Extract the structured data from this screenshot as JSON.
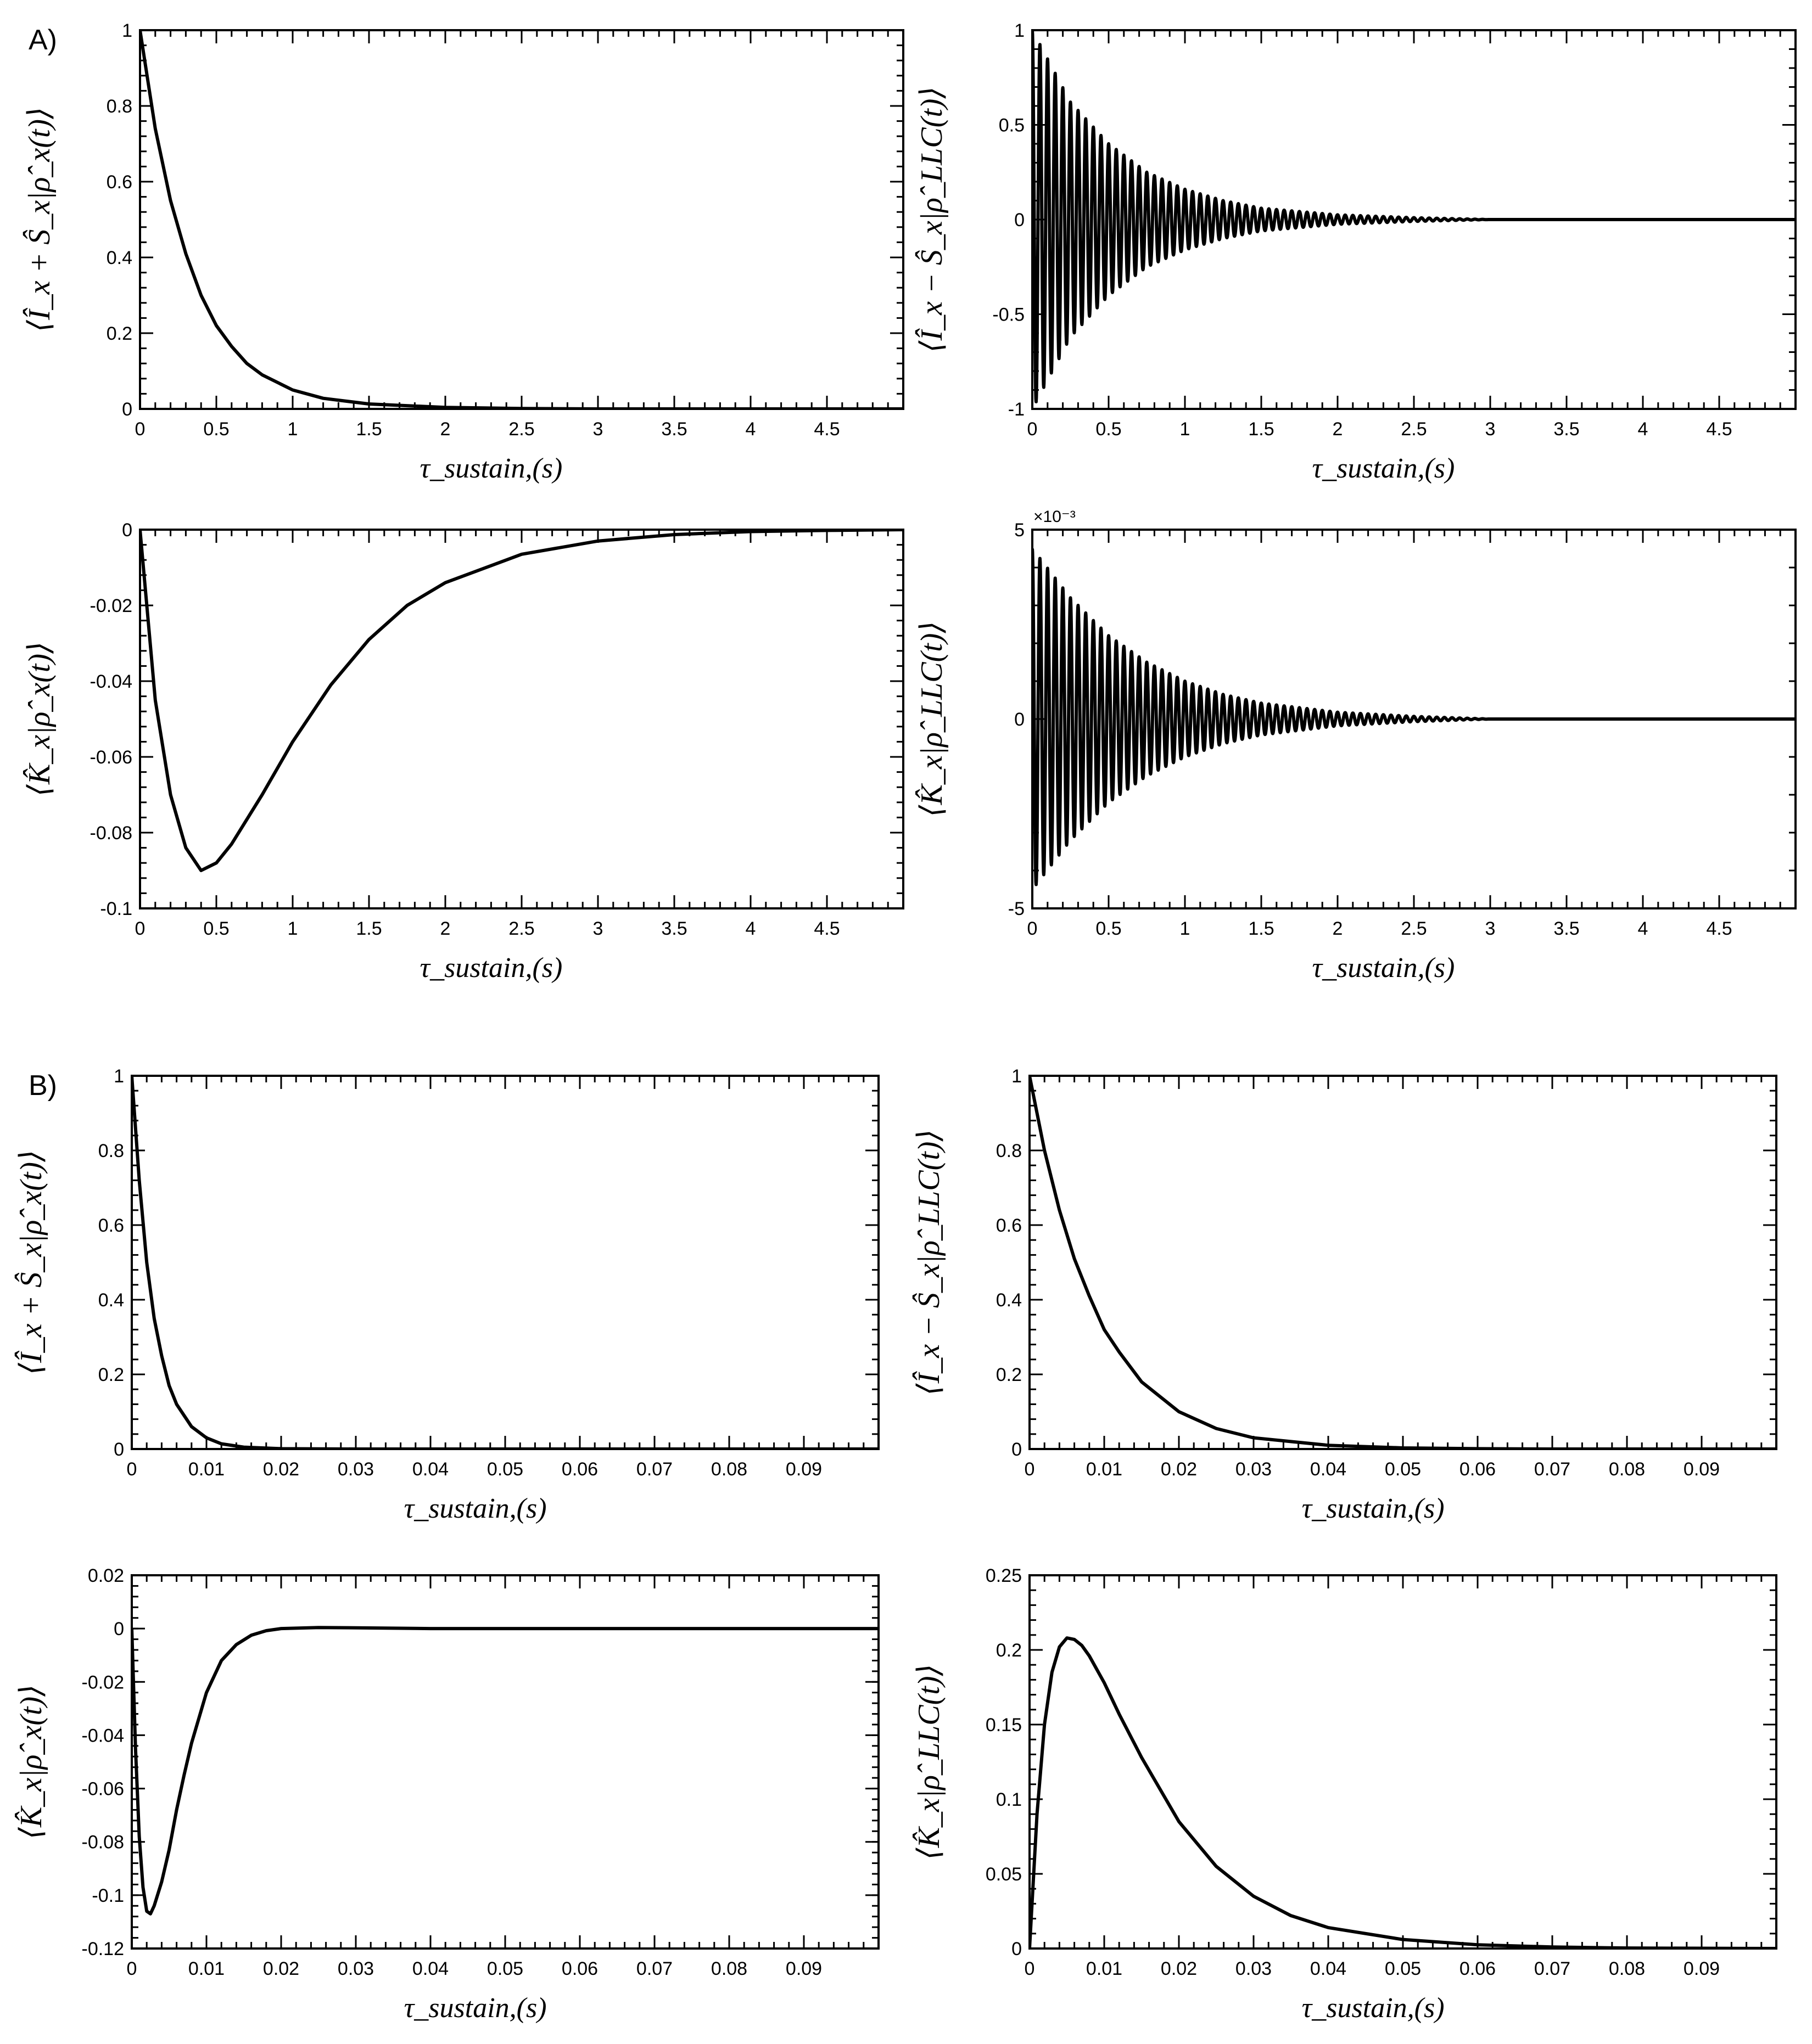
{
  "figure": {
    "panel_labels": [
      "A)",
      "B)"
    ]
  },
  "chart_data": [
    {
      "id": "A1",
      "type": "line",
      "panel": "A",
      "ylabel": "⟨Î_x + Ŝ_x|ρ̂_x(t)⟩",
      "xlabel": "τ_sustain,(s)",
      "xlim": [
        0,
        5
      ],
      "ylim": [
        0,
        1
      ],
      "xticks": [
        0,
        0.5,
        1,
        1.5,
        2,
        2.5,
        3,
        3.5,
        4,
        4.5
      ],
      "xtick_labels": [
        "0",
        "0.5",
        "1",
        "1.5",
        "2",
        "2.5",
        "3",
        "3.5",
        "4",
        "4.5"
      ],
      "yticks": [
        0,
        0.2,
        0.4,
        0.6,
        0.8,
        1
      ],
      "ytick_labels": [
        "0",
        "0.2",
        "0.4",
        "0.6",
        "0.8",
        "1"
      ],
      "series": [
        {
          "kind": "curve",
          "x": [
            0,
            0.1,
            0.2,
            0.3,
            0.4,
            0.5,
            0.6,
            0.7,
            0.8,
            1.0,
            1.2,
            1.5,
            2.0,
            2.5,
            3.0,
            4.0,
            5.0
          ],
          "y": [
            1.0,
            0.74,
            0.55,
            0.41,
            0.3,
            0.22,
            0.165,
            0.12,
            0.09,
            0.05,
            0.028,
            0.013,
            0.004,
            0.001,
            0.0,
            0.0,
            0.0
          ]
        }
      ]
    },
    {
      "id": "A2",
      "type": "line",
      "panel": "A",
      "ylabel": "⟨Î_x − Ŝ_x|ρ̂_LLC(t)⟩",
      "xlabel": "τ_sustain,(s)",
      "xlim": [
        0,
        5
      ],
      "ylim": [
        -1,
        1
      ],
      "xticks": [
        0,
        0.5,
        1,
        1.5,
        2,
        2.5,
        3,
        3.5,
        4,
        4.5
      ],
      "xtick_labels": [
        "0",
        "0.5",
        "1",
        "1.5",
        "2",
        "2.5",
        "3",
        "3.5",
        "4",
        "4.5"
      ],
      "yticks": [
        -1,
        -0.5,
        0,
        0.5,
        1
      ],
      "ytick_labels": [
        "-1",
        "-0.5",
        "0",
        "0.5",
        "1"
      ],
      "series": [
        {
          "kind": "damped_oscillation",
          "amplitude_x": [
            0,
            0.25,
            0.5,
            0.75,
            1.0,
            1.25,
            1.5,
            2.0,
            2.5,
            3.0,
            5.0
          ],
          "amplitude_y": [
            1.0,
            0.62,
            0.4,
            0.25,
            0.16,
            0.1,
            0.06,
            0.025,
            0.01,
            0.0,
            0.0
          ],
          "period": 0.05
        }
      ]
    },
    {
      "id": "A3",
      "type": "line",
      "panel": "A",
      "ylabel": "⟨K̂_x|ρ̂_x(t)⟩",
      "xlabel": "τ_sustain,(s)",
      "xlim": [
        0,
        5
      ],
      "ylim": [
        -0.1,
        0
      ],
      "xticks": [
        0,
        0.5,
        1,
        1.5,
        2,
        2.5,
        3,
        3.5,
        4,
        4.5
      ],
      "xtick_labels": [
        "0",
        "0.5",
        "1",
        "1.5",
        "2",
        "2.5",
        "3",
        "3.5",
        "4",
        "4.5"
      ],
      "yticks": [
        -0.1,
        -0.08,
        -0.06,
        -0.04,
        -0.02,
        0
      ],
      "ytick_labels": [
        "-0.1",
        "-0.08",
        "-0.06",
        "-0.04",
        "-0.02",
        "0"
      ],
      "series": [
        {
          "kind": "curve",
          "x": [
            0,
            0.1,
            0.2,
            0.3,
            0.4,
            0.5,
            0.6,
            0.8,
            1.0,
            1.25,
            1.5,
            1.75,
            2.0,
            2.5,
            3.0,
            3.5,
            4.0,
            4.5,
            5.0
          ],
          "y": [
            0,
            -0.045,
            -0.07,
            -0.084,
            -0.09,
            -0.088,
            -0.083,
            -0.07,
            -0.056,
            -0.041,
            -0.029,
            -0.02,
            -0.014,
            -0.0065,
            -0.003,
            -0.0013,
            -0.0005,
            -0.0002,
            0
          ]
        }
      ]
    },
    {
      "id": "A4",
      "type": "line",
      "panel": "A",
      "ylabel": "⟨K̂_x|ρ̂_LLC(t)⟩",
      "xlabel": "τ_sustain,(s)",
      "xlim": [
        0,
        5
      ],
      "ylim": [
        -5,
        5
      ],
      "multiplier": "×10⁻³",
      "xticks": [
        0,
        0.5,
        1,
        1.5,
        2,
        2.5,
        3,
        3.5,
        4,
        4.5
      ],
      "xtick_labels": [
        "0",
        "0.5",
        "1",
        "1.5",
        "2",
        "2.5",
        "3",
        "3.5",
        "4",
        "4.5"
      ],
      "yticks": [
        -5,
        0,
        5
      ],
      "ytick_labels": [
        "-5",
        "0",
        "5"
      ],
      "series": [
        {
          "kind": "damped_oscillation",
          "amplitude_x": [
            0,
            0.25,
            0.5,
            0.75,
            1.0,
            1.25,
            1.5,
            2.0,
            2.5,
            3.0,
            5.0
          ],
          "amplitude_y": [
            4.5,
            3.2,
            2.2,
            1.5,
            1.0,
            0.65,
            0.42,
            0.18,
            0.07,
            0.0,
            0.0
          ],
          "period": 0.05
        }
      ]
    },
    {
      "id": "B1",
      "type": "line",
      "panel": "B",
      "ylabel": "⟨Î_x + Ŝ_x|ρ̂_x(t)⟩",
      "xlabel": "τ_sustain,(s)",
      "xlim": [
        0,
        0.1
      ],
      "ylim": [
        0,
        1
      ],
      "xticks": [
        0,
        0.01,
        0.02,
        0.03,
        0.04,
        0.05,
        0.06,
        0.07,
        0.08,
        0.09
      ],
      "xtick_labels": [
        "0",
        "0.01",
        "0.02",
        "0.03",
        "0.04",
        "0.05",
        "0.06",
        "0.07",
        "0.08",
        "0.09"
      ],
      "yticks": [
        0,
        0.2,
        0.4,
        0.6,
        0.8,
        1
      ],
      "ytick_labels": [
        "0",
        "0.2",
        "0.4",
        "0.6",
        "0.8",
        "1"
      ],
      "series": [
        {
          "kind": "curve",
          "x": [
            0,
            0.001,
            0.002,
            0.003,
            0.004,
            0.005,
            0.006,
            0.008,
            0.01,
            0.012,
            0.015,
            0.02,
            0.03,
            0.1
          ],
          "y": [
            1.0,
            0.72,
            0.5,
            0.35,
            0.25,
            0.17,
            0.12,
            0.06,
            0.03,
            0.014,
            0.005,
            0.001,
            0.0,
            0.0
          ]
        }
      ]
    },
    {
      "id": "B2",
      "type": "line",
      "panel": "B",
      "ylabel": "⟨Î_x − Ŝ_x|ρ̂_LLC(t)⟩",
      "xlabel": "τ_sustain,(s)",
      "xlim": [
        0,
        0.1
      ],
      "ylim": [
        0,
        1
      ],
      "xticks": [
        0,
        0.01,
        0.02,
        0.03,
        0.04,
        0.05,
        0.06,
        0.07,
        0.08,
        0.09
      ],
      "xtick_labels": [
        "0",
        "0.01",
        "0.02",
        "0.03",
        "0.04",
        "0.05",
        "0.06",
        "0.07",
        "0.08",
        "0.09"
      ],
      "yticks": [
        0,
        0.2,
        0.4,
        0.6,
        0.8,
        1
      ],
      "ytick_labels": [
        "0",
        "0.2",
        "0.4",
        "0.6",
        "0.8",
        "1"
      ],
      "series": [
        {
          "kind": "curve",
          "x": [
            0,
            0.002,
            0.004,
            0.006,
            0.008,
            0.01,
            0.012,
            0.015,
            0.02,
            0.025,
            0.03,
            0.04,
            0.05,
            0.06,
            0.07,
            0.1
          ],
          "y": [
            1.0,
            0.8,
            0.64,
            0.51,
            0.41,
            0.32,
            0.26,
            0.18,
            0.1,
            0.055,
            0.03,
            0.01,
            0.003,
            0.001,
            0.0,
            0.0
          ]
        }
      ]
    },
    {
      "id": "B3",
      "type": "line",
      "panel": "B",
      "ylabel": "⟨K̂_x|ρ̂_x(t)⟩",
      "xlabel": "τ_sustain,(s)",
      "xlim": [
        0,
        0.1
      ],
      "ylim": [
        -0.12,
        0.02
      ],
      "xticks": [
        0,
        0.01,
        0.02,
        0.03,
        0.04,
        0.05,
        0.06,
        0.07,
        0.08,
        0.09
      ],
      "xtick_labels": [
        "0",
        "0.01",
        "0.02",
        "0.03",
        "0.04",
        "0.05",
        "0.06",
        "0.07",
        "0.08",
        "0.09"
      ],
      "yticks": [
        -0.12,
        -0.1,
        -0.08,
        -0.06,
        -0.04,
        -0.02,
        0,
        0.02
      ],
      "ytick_labels": [
        "-0.12",
        "-0.1",
        "-0.08",
        "-0.06",
        "-0.04",
        "-0.02",
        "0",
        "0.02"
      ],
      "series": [
        {
          "kind": "curve",
          "x": [
            0,
            0.0005,
            0.001,
            0.0015,
            0.002,
            0.0025,
            0.003,
            0.004,
            0.005,
            0.006,
            0.007,
            0.008,
            0.01,
            0.012,
            0.014,
            0.016,
            0.018,
            0.02,
            0.025,
            0.03,
            0.04,
            0.1
          ],
          "y": [
            0,
            -0.045,
            -0.078,
            -0.097,
            -0.106,
            -0.107,
            -0.104,
            -0.095,
            -0.083,
            -0.068,
            -0.055,
            -0.043,
            -0.024,
            -0.012,
            -0.006,
            -0.0025,
            -0.0008,
            0.0,
            0.0004,
            0.0003,
            0.0,
            0.0
          ]
        }
      ]
    },
    {
      "id": "B4",
      "type": "line",
      "panel": "B",
      "ylabel": "⟨K̂_x|ρ̂_LLC(t)⟩",
      "xlabel": "τ_sustain,(s)",
      "xlim": [
        0,
        0.1
      ],
      "ylim": [
        0,
        0.25
      ],
      "xticks": [
        0,
        0.01,
        0.02,
        0.03,
        0.04,
        0.05,
        0.06,
        0.07,
        0.08,
        0.09
      ],
      "xtick_labels": [
        "0",
        "0.01",
        "0.02",
        "0.03",
        "0.04",
        "0.05",
        "0.06",
        "0.07",
        "0.08",
        "0.09"
      ],
      "yticks": [
        0,
        0.05,
        0.1,
        0.15,
        0.2,
        0.25
      ],
      "ytick_labels": [
        "0",
        "0.05",
        "0.1",
        "0.15",
        "0.2",
        "0.25"
      ],
      "series": [
        {
          "kind": "curve",
          "x": [
            0,
            0.001,
            0.002,
            0.003,
            0.004,
            0.005,
            0.006,
            0.007,
            0.008,
            0.01,
            0.012,
            0.015,
            0.02,
            0.025,
            0.03,
            0.035,
            0.04,
            0.05,
            0.06,
            0.07,
            0.08,
            0.1
          ],
          "y": [
            0,
            0.09,
            0.15,
            0.185,
            0.202,
            0.208,
            0.207,
            0.203,
            0.196,
            0.178,
            0.157,
            0.128,
            0.085,
            0.055,
            0.035,
            0.022,
            0.014,
            0.006,
            0.0025,
            0.001,
            0.0003,
            0.0
          ]
        }
      ]
    }
  ]
}
